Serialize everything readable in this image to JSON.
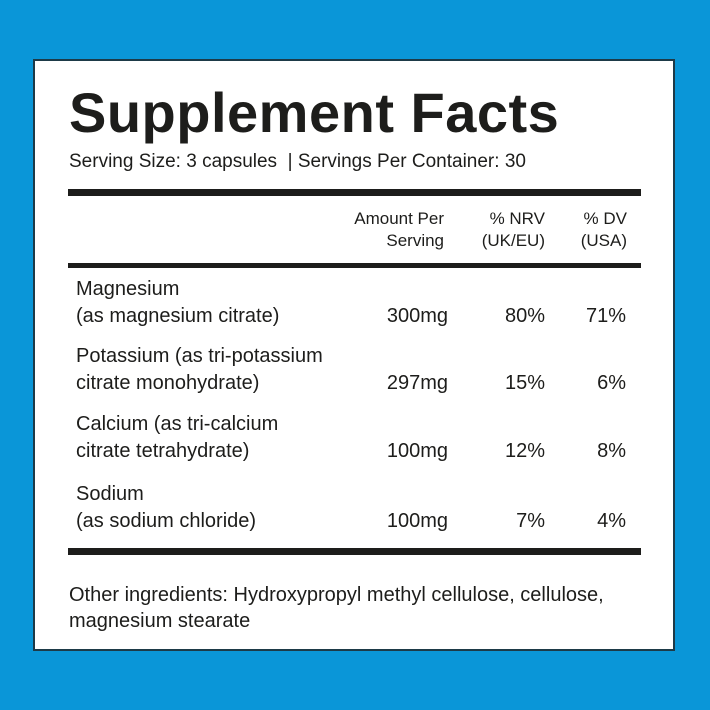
{
  "title": "Supplement Facts",
  "serving_line": "Serving Size: 3 capsules  | Servings Per Container: 30",
  "headers": {
    "amount": [
      "Amount Per",
      "Serving"
    ],
    "nrv": [
      "% NRV",
      "(UK/EU)"
    ],
    "dv": [
      "% DV",
      "(USA)"
    ]
  },
  "rows": [
    {
      "name": [
        "Magnesium",
        "(as magnesium citrate)"
      ],
      "amount": "300mg",
      "nrv": "80%",
      "dv": "71%"
    },
    {
      "name": [
        "Potassium (as tri-potassium",
        "citrate monohydrate)"
      ],
      "amount": "297mg",
      "nrv": "15%",
      "dv": "6%"
    },
    {
      "name": [
        "Calcium (as tri-calcium",
        "citrate tetrahydrate)"
      ],
      "amount": "100mg",
      "nrv": "12%",
      "dv": "8%"
    },
    {
      "name": [
        "Sodium",
        "(as sodium chloride)"
      ],
      "amount": "100mg",
      "nrv": "7%",
      "dv": "4%"
    }
  ],
  "other_ingredients": "Other ingredients: Hydroxypropyl methyl cellulose, cellulose, magnesium stearate",
  "colors": {
    "background": "#0a96d8",
    "text": "#1d1d1b"
  }
}
